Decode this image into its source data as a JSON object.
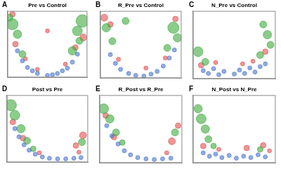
{
  "chart_data": [
    {
      "type": "bubble",
      "panel": "A",
      "title": "Pre vs Control",
      "xlim": [
        -4,
        4
      ],
      "ylim": [
        0,
        10
      ],
      "tick_labels": false,
      "grid": false,
      "series": [
        {
          "color": "#4a74c9",
          "values": [
            {
              "x": -3,
              "y": 4,
              "size": 3
            },
            {
              "x": -2.5,
              "y": 2.5,
              "size": 3
            },
            {
              "x": -2,
              "y": 1.5,
              "size": 3
            },
            {
              "x": -1.5,
              "y": 1,
              "size": 3
            },
            {
              "x": -1,
              "y": 0.6,
              "size": 3
            },
            {
              "x": 0,
              "y": 0.3,
              "size": 3
            },
            {
              "x": 0.5,
              "y": 0.4,
              "size": 3
            },
            {
              "x": 1,
              "y": 0.6,
              "size": 3
            },
            {
              "x": 1.5,
              "y": 1,
              "size": 3
            },
            {
              "x": 2,
              "y": 1.4,
              "size": 3
            },
            {
              "x": 2.5,
              "y": 2.3,
              "size": 3
            },
            {
              "x": 3,
              "y": 3.5,
              "size": 3
            }
          ]
        },
        {
          "color": "#3daa3d",
          "values": [
            {
              "x": -3.5,
              "y": 8,
              "size": 8
            },
            {
              "x": -3,
              "y": 6.5,
              "size": 6
            },
            {
              "x": 3,
              "y": 7,
              "size": 7
            },
            {
              "x": 3.5,
              "y": 8.5,
              "size": 9
            },
            {
              "x": -2.5,
              "y": 3.5,
              "size": 5
            },
            {
              "x": 2.5,
              "y": 4,
              "size": 6
            },
            {
              "x": -3.8,
              "y": 9,
              "size": 5
            },
            {
              "x": 3.2,
              "y": 5.5,
              "size": 5
            }
          ]
        },
        {
          "color": "#e05050",
          "values": [
            {
              "x": -3.2,
              "y": 5,
              "size": 4
            },
            {
              "x": -2.2,
              "y": 2.8,
              "size": 3
            },
            {
              "x": 2.8,
              "y": 4.5,
              "size": 4
            },
            {
              "x": 3.6,
              "y": 6,
              "size": 5
            },
            {
              "x": -1,
              "y": 1.2,
              "size": 3
            },
            {
              "x": 1.8,
              "y": 2,
              "size": 3
            },
            {
              "x": 0,
              "y": 7,
              "size": 3
            },
            {
              "x": -3.5,
              "y": 9.5,
              "size": 4
            }
          ]
        }
      ]
    },
    {
      "type": "bubble",
      "panel": "B",
      "title": "R_Pre vs Control",
      "xlim": [
        -4,
        4
      ],
      "ylim": [
        0,
        10
      ],
      "tick_labels": false,
      "grid": false,
      "series": [
        {
          "color": "#4a74c9",
          "values": [
            {
              "x": -3,
              "y": 3.5,
              "size": 3
            },
            {
              "x": -2.5,
              "y": 2.2,
              "size": 3
            },
            {
              "x": -2,
              "y": 1.3,
              "size": 3
            },
            {
              "x": -1.2,
              "y": 0.7,
              "size": 3
            },
            {
              "x": -0.5,
              "y": 0.4,
              "size": 3
            },
            {
              "x": 0.3,
              "y": 0.3,
              "size": 3
            },
            {
              "x": 1,
              "y": 0.6,
              "size": 3
            },
            {
              "x": 1.6,
              "y": 1,
              "size": 3
            },
            {
              "x": 2.2,
              "y": 1.8,
              "size": 3
            },
            {
              "x": 2.8,
              "y": 3,
              "size": 3
            },
            {
              "x": 3.3,
              "y": 4.2,
              "size": 3
            }
          ]
        },
        {
          "color": "#3daa3d",
          "values": [
            {
              "x": -3.4,
              "y": 7.5,
              "size": 6
            },
            {
              "x": -2.8,
              "y": 5.5,
              "size": 5
            },
            {
              "x": -1.5,
              "y": 8.5,
              "size": 5
            },
            {
              "x": 3.2,
              "y": 7.5,
              "size": 8
            },
            {
              "x": 3.6,
              "y": 6,
              "size": 6
            },
            {
              "x": 2.6,
              "y": 4.5,
              "size": 5
            }
          ]
        },
        {
          "color": "#e05050",
          "values": [
            {
              "x": -3.6,
              "y": 9,
              "size": 5
            },
            {
              "x": -3,
              "y": 8,
              "size": 4
            },
            {
              "x": -2.2,
              "y": 2.8,
              "size": 3
            },
            {
              "x": 2.4,
              "y": 3,
              "size": 3
            },
            {
              "x": 3.4,
              "y": 8.8,
              "size": 4
            },
            {
              "x": 0.5,
              "y": 1.5,
              "size": 3
            }
          ]
        }
      ]
    },
    {
      "type": "bubble",
      "panel": "C",
      "title": "N_Pre vs Control",
      "xlim": [
        -4,
        4
      ],
      "ylim": [
        0,
        10
      ],
      "tick_labels": false,
      "grid": false,
      "series": [
        {
          "color": "#4a74c9",
          "values": [
            {
              "x": -3,
              "y": 1.2,
              "size": 3
            },
            {
              "x": -2.5,
              "y": 0.8,
              "size": 3
            },
            {
              "x": -2,
              "y": 1.5,
              "size": 3
            },
            {
              "x": -1.5,
              "y": 0.6,
              "size": 3
            },
            {
              "x": -1,
              "y": 1.1,
              "size": 3
            },
            {
              "x": 0,
              "y": 0.7,
              "size": 3
            },
            {
              "x": 0.5,
              "y": 1.3,
              "size": 3
            },
            {
              "x": 1,
              "y": 0.8,
              "size": 3
            },
            {
              "x": 1.5,
              "y": 1.6,
              "size": 3
            },
            {
              "x": 2,
              "y": 1,
              "size": 3
            },
            {
              "x": 2.5,
              "y": 1.8,
              "size": 3
            },
            {
              "x": 3,
              "y": 2.2,
              "size": 3
            }
          ]
        },
        {
          "color": "#3daa3d",
          "values": [
            {
              "x": -3.5,
              "y": 4,
              "size": 7
            },
            {
              "x": -2.8,
              "y": 2.5,
              "size": 5
            },
            {
              "x": 2.8,
              "y": 8,
              "size": 5
            },
            {
              "x": 3.2,
              "y": 6.5,
              "size": 6
            },
            {
              "x": 3.5,
              "y": 5,
              "size": 5
            },
            {
              "x": 2.5,
              "y": 3.5,
              "size": 5
            }
          ]
        },
        {
          "color": "#e05050",
          "values": [
            {
              "x": -3.2,
              "y": 2,
              "size": 4
            },
            {
              "x": -1.8,
              "y": 2.4,
              "size": 3
            },
            {
              "x": 1.8,
              "y": 2.6,
              "size": 3
            },
            {
              "x": 3,
              "y": 4,
              "size": 4
            },
            {
              "x": 0.8,
              "y": 2.2,
              "size": 3
            }
          ]
        }
      ]
    },
    {
      "type": "bubble",
      "panel": "D",
      "title": "Post vs Pre",
      "xlim": [
        -4,
        4
      ],
      "ylim": [
        0,
        10
      ],
      "tick_labels": false,
      "grid": false,
      "series": [
        {
          "color": "#4a74c9",
          "values": [
            {
              "x": -3.2,
              "y": 5,
              "size": 3
            },
            {
              "x": -2.8,
              "y": 3.8,
              "size": 3
            },
            {
              "x": -2.3,
              "y": 2.6,
              "size": 3
            },
            {
              "x": -1.8,
              "y": 1.8,
              "size": 3
            },
            {
              "x": -1.2,
              "y": 1.2,
              "size": 3
            },
            {
              "x": -0.5,
              "y": 0.8,
              "size": 3
            },
            {
              "x": 0.2,
              "y": 0.6,
              "size": 3
            },
            {
              "x": 1,
              "y": 0.5,
              "size": 3
            },
            {
              "x": 1.8,
              "y": 0.5,
              "size": 3
            },
            {
              "x": 2.6,
              "y": 0.6,
              "size": 3
            },
            {
              "x": 3.3,
              "y": 0.7,
              "size": 3
            }
          ]
        },
        {
          "color": "#3daa3d",
          "values": [
            {
              "x": -3.6,
              "y": 8.5,
              "size": 8
            },
            {
              "x": -3.2,
              "y": 7,
              "size": 7
            },
            {
              "x": -2.6,
              "y": 5,
              "size": 6
            },
            {
              "x": -2,
              "y": 3.2,
              "size": 5
            },
            {
              "x": -1.4,
              "y": 2,
              "size": 4
            },
            {
              "x": 3.4,
              "y": 3,
              "size": 5
            }
          ]
        },
        {
          "color": "#e05050",
          "values": [
            {
              "x": -3.4,
              "y": 6,
              "size": 4
            },
            {
              "x": -2.4,
              "y": 3.6,
              "size": 4
            },
            {
              "x": 2.8,
              "y": 2.5,
              "size": 4
            },
            {
              "x": 3.5,
              "y": 4,
              "size": 5
            },
            {
              "x": 3.1,
              "y": 1.5,
              "size": 3
            },
            {
              "x": -0.8,
              "y": 1.4,
              "size": 3
            }
          ]
        }
      ]
    },
    {
      "type": "bubble",
      "panel": "E",
      "title": "R_Post vs R_Pre",
      "xlim": [
        -4,
        4
      ],
      "ylim": [
        0,
        10
      ],
      "tick_labels": false,
      "grid": false,
      "series": [
        {
          "color": "#4a74c9",
          "values": [
            {
              "x": -3.3,
              "y": 5.5,
              "size": 3
            },
            {
              "x": -2.8,
              "y": 4,
              "size": 3
            },
            {
              "x": -2.2,
              "y": 2.8,
              "size": 3
            },
            {
              "x": -1.6,
              "y": 1.8,
              "size": 3
            },
            {
              "x": -1,
              "y": 1.2,
              "size": 3
            },
            {
              "x": -0.3,
              "y": 0.8,
              "size": 3
            },
            {
              "x": 0.5,
              "y": 0.6,
              "size": 3
            },
            {
              "x": 1.3,
              "y": 0.5,
              "size": 3
            },
            {
              "x": 2.1,
              "y": 0.6,
              "size": 3
            },
            {
              "x": 2.9,
              "y": 0.7,
              "size": 3
            }
          ]
        },
        {
          "color": "#3daa3d",
          "values": [
            {
              "x": -3.6,
              "y": 8,
              "size": 7
            },
            {
              "x": -3,
              "y": 6.5,
              "size": 6
            },
            {
              "x": -2.4,
              "y": 4.5,
              "size": 5
            },
            {
              "x": -1.8,
              "y": 3,
              "size": 4
            },
            {
              "x": 3.3,
              "y": 4.5,
              "size": 5
            }
          ]
        },
        {
          "color": "#e05050",
          "values": [
            {
              "x": -3.4,
              "y": 7,
              "size": 4
            },
            {
              "x": -2.6,
              "y": 3.8,
              "size": 4
            },
            {
              "x": 3,
              "y": 3.2,
              "size": 5
            },
            {
              "x": 3.6,
              "y": 5.5,
              "size": 4
            },
            {
              "x": 2.5,
              "y": 1.5,
              "size": 3
            }
          ]
        }
      ]
    },
    {
      "type": "bubble",
      "panel": "F",
      "title": "N_Post vs N_Pre",
      "xlim": [
        -4,
        4
      ],
      "ylim": [
        0,
        10
      ],
      "tick_labels": false,
      "grid": false,
      "series": [
        {
          "color": "#4a74c9",
          "values": [
            {
              "x": -3,
              "y": 1.5,
              "size": 3
            },
            {
              "x": -2.4,
              "y": 1,
              "size": 3
            },
            {
              "x": -1.8,
              "y": 1.3,
              "size": 3
            },
            {
              "x": -1.2,
              "y": 0.8,
              "size": 3
            },
            {
              "x": -0.5,
              "y": 1.1,
              "size": 3
            },
            {
              "x": 0.2,
              "y": 0.7,
              "size": 3
            },
            {
              "x": 0.9,
              "y": 1,
              "size": 3
            },
            {
              "x": 1.6,
              "y": 0.8,
              "size": 3
            },
            {
              "x": 2.3,
              "y": 1.2,
              "size": 3
            },
            {
              "x": 3,
              "y": 0.9,
              "size": 3
            }
          ]
        },
        {
          "color": "#3daa3d",
          "values": [
            {
              "x": -3.5,
              "y": 8,
              "size": 6
            },
            {
              "x": -3.2,
              "y": 6.5,
              "size": 7
            },
            {
              "x": -2.8,
              "y": 5,
              "size": 6
            },
            {
              "x": -2.5,
              "y": 3.5,
              "size": 5
            },
            {
              "x": -2,
              "y": 2.5,
              "size": 4
            },
            {
              "x": 2.5,
              "y": 2,
              "size": 4
            }
          ]
        },
        {
          "color": "#e05050",
          "values": [
            {
              "x": -3,
              "y": 2.5,
              "size": 4
            },
            {
              "x": -1.5,
              "y": 2,
              "size": 3
            },
            {
              "x": 1.2,
              "y": 2.2,
              "size": 4
            },
            {
              "x": 2.8,
              "y": 2.6,
              "size": 4
            },
            {
              "x": 3.4,
              "y": 1.8,
              "size": 3
            }
          ]
        }
      ]
    }
  ]
}
